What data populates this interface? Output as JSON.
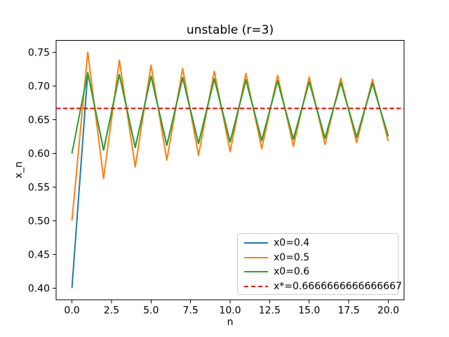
{
  "colors": {
    "background": "#ffffff",
    "axes": "#000000",
    "text": "#000000",
    "legend_border": "#cccccc"
  },
  "chart_data": {
    "type": "line",
    "title": "unstable (r=3)",
    "xlabel": "n",
    "ylabel": "x_n",
    "grid": false,
    "legend_position": "lower right",
    "xlim": [
      -1,
      21
    ],
    "ylim": [
      0.3825,
      0.7675
    ],
    "x_ticks": [
      0,
      2.5,
      5,
      7.5,
      10,
      12.5,
      15,
      17.5,
      20
    ],
    "x_tick_labels": [
      "0.0",
      "2.5",
      "5.0",
      "7.5",
      "10.0",
      "12.5",
      "15.0",
      "17.5",
      "20.0"
    ],
    "y_ticks": [
      0.4,
      0.45,
      0.5,
      0.55,
      0.6,
      0.65,
      0.7,
      0.75
    ],
    "y_tick_labels": [
      "0.40",
      "0.45",
      "0.50",
      "0.55",
      "0.60",
      "0.65",
      "0.70",
      "0.75"
    ],
    "x": [
      0,
      1,
      2,
      3,
      4,
      5,
      6,
      7,
      8,
      9,
      10,
      11,
      12,
      13,
      14,
      15,
      16,
      17,
      18,
      19,
      20
    ],
    "series": [
      {
        "id": "x0-0-4",
        "name": "x0=0.4",
        "label": "x0=0.4",
        "color": "#1f77b4",
        "style": "solid",
        "values": [
          0.4,
          0.72,
          0.6048,
          0.717051,
          0.608667,
          0.714575,
          0.611873,
          0.712453,
          0.614591,
          0.710607,
          0.616934,
          0.708979,
          0.618983,
          0.707529,
          0.620795,
          0.706226,
          0.622413,
          0.705045,
          0.623869,
          0.703969,
          0.62519
        ]
      },
      {
        "id": "x0-0-5",
        "name": "x0=0.5",
        "label": "x0=0.5",
        "color": "#ff7f0e",
        "style": "solid",
        "values": [
          0.5,
          0.75,
          0.5625,
          0.738281,
          0.579666,
          0.73096,
          0.589973,
          0.725715,
          0.597158,
          0.721681,
          0.602573,
          0.718436,
          0.606857,
          0.715745,
          0.610362,
          0.71346,
          0.613304,
          0.711487,
          0.61582,
          0.709757,
          0.618006
        ]
      },
      {
        "id": "x0-0-6",
        "name": "x0=0.6",
        "label": "x0=0.6",
        "color": "#2ca02c",
        "style": "solid",
        "values": [
          0.6,
          0.72,
          0.6048,
          0.717051,
          0.608667,
          0.714575,
          0.611873,
          0.712453,
          0.614591,
          0.710607,
          0.616934,
          0.708979,
          0.618983,
          0.707529,
          0.620795,
          0.706226,
          0.622413,
          0.705045,
          0.623869,
          0.703969,
          0.62519
        ]
      },
      {
        "id": "x-star",
        "name": "x*",
        "label": "x*=0.6666666666666667",
        "color": "#ff0000",
        "style": "dashed",
        "constant": 0.6666666666666667
      }
    ]
  }
}
